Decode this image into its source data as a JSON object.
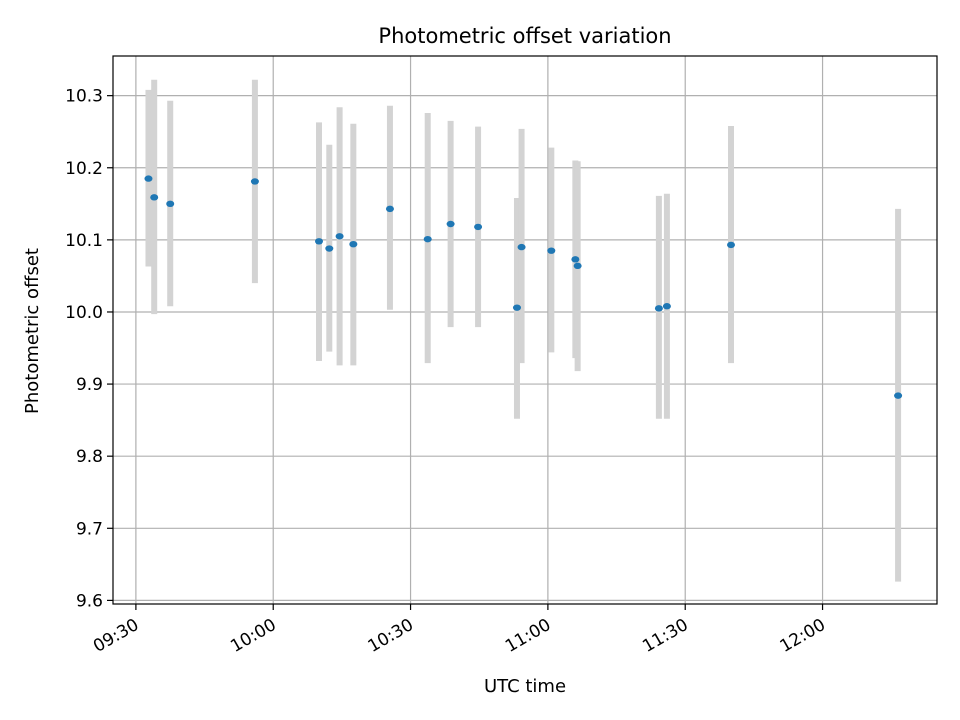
{
  "chart_data": {
    "type": "scatter",
    "title": "Photometric offset variation",
    "xlabel": "UTC time",
    "ylabel": "Photometric offset",
    "x_ticks": [
      "09:30",
      "10:00",
      "10:30",
      "11:00",
      "11:30",
      "12:00"
    ],
    "y_ticks": [
      "9.6",
      "9.7",
      "9.8",
      "9.9",
      "10.0",
      "10.1",
      "10.2",
      "10.3"
    ],
    "xlim": [
      "09:25",
      "12:25"
    ],
    "ylim": [
      9.595,
      10.355
    ],
    "grid": true,
    "point_color": "#1f77b4",
    "errorbar_color": "#d3d3d3",
    "points": [
      {
        "time": "09:32:45",
        "y": 10.185,
        "err_low": 10.063,
        "err_high": 10.308
      },
      {
        "time": "09:34:00",
        "y": 10.159,
        "err_low": 9.997,
        "err_high": 10.322
      },
      {
        "time": "09:37:30",
        "y": 10.15,
        "err_low": 10.008,
        "err_high": 10.293
      },
      {
        "time": "09:56:00",
        "y": 10.181,
        "err_low": 10.04,
        "err_high": 10.322
      },
      {
        "time": "10:10:00",
        "y": 10.098,
        "err_low": 9.932,
        "err_high": 10.263
      },
      {
        "time": "10:12:15",
        "y": 10.088,
        "err_low": 9.945,
        "err_high": 10.232
      },
      {
        "time": "10:14:30",
        "y": 10.105,
        "err_low": 9.926,
        "err_high": 10.284
      },
      {
        "time": "10:17:30",
        "y": 10.094,
        "err_low": 9.926,
        "err_high": 10.261
      },
      {
        "time": "10:25:30",
        "y": 10.143,
        "err_low": 10.003,
        "err_high": 10.286
      },
      {
        "time": "10:33:45",
        "y": 10.101,
        "err_low": 9.929,
        "err_high": 10.276
      },
      {
        "time": "10:38:45",
        "y": 10.122,
        "err_low": 9.979,
        "err_high": 10.265
      },
      {
        "time": "10:44:45",
        "y": 10.118,
        "err_low": 9.979,
        "err_high": 10.257
      },
      {
        "time": "10:53:15",
        "y": 10.006,
        "err_low": 9.852,
        "err_high": 10.158
      },
      {
        "time": "10:54:15",
        "y": 10.09,
        "err_low": 9.929,
        "err_high": 10.254
      },
      {
        "time": "11:00:45",
        "y": 10.085,
        "err_low": 9.944,
        "err_high": 10.228
      },
      {
        "time": "11:06:00",
        "y": 10.073,
        "err_low": 9.936,
        "err_high": 10.21
      },
      {
        "time": "11:06:30",
        "y": 10.064,
        "err_low": 9.918,
        "err_high": 10.209
      },
      {
        "time": "11:24:15",
        "y": 10.005,
        "err_low": 9.852,
        "err_high": 10.161
      },
      {
        "time": "11:26:00",
        "y": 10.008,
        "err_low": 9.852,
        "err_high": 10.164
      },
      {
        "time": "11:40:00",
        "y": 10.093,
        "err_low": 9.929,
        "err_high": 10.258
      },
      {
        "time": "12:16:30",
        "y": 9.884,
        "err_low": 9.626,
        "err_high": 10.143
      }
    ]
  }
}
